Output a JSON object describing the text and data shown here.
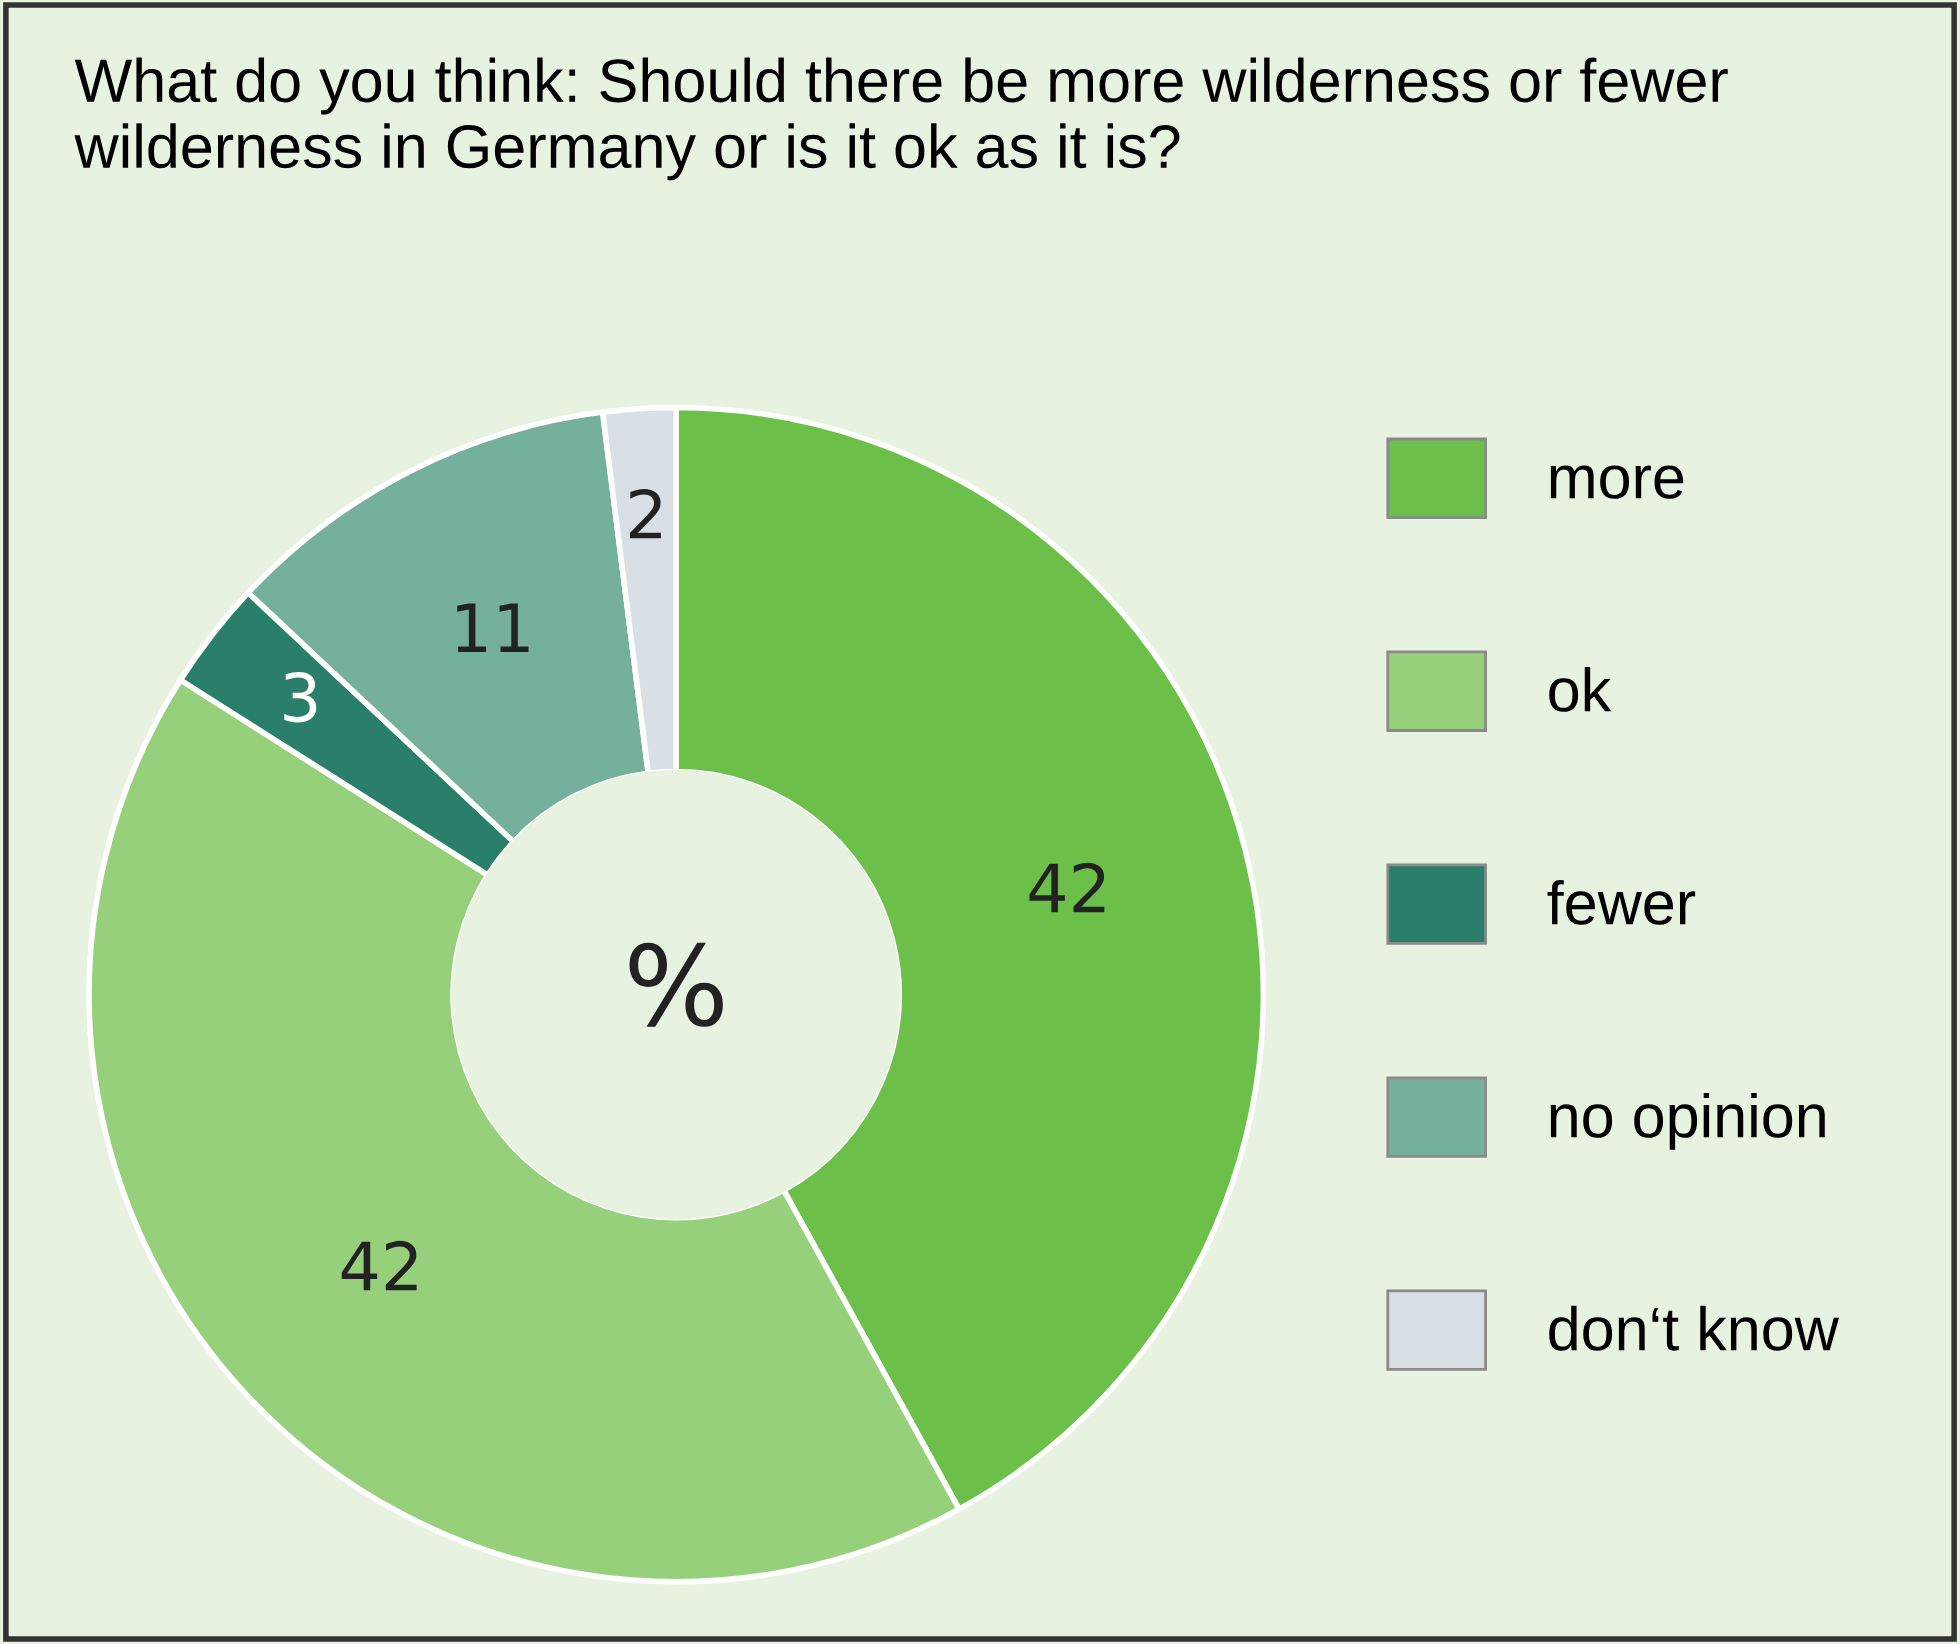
{
  "chart_data": {
    "type": "donut",
    "title": "What do you think: Should there be more wilderness or fewer wilderness in Germany or is it ok as it is?",
    "categories": [
      "more",
      "ok",
      "fewer",
      "no opinion",
      "don‘t know"
    ],
    "values": [
      42,
      42,
      3,
      11,
      2
    ],
    "colors": [
      "#6cc04a",
      "#97d07a",
      "#2a7f6a",
      "#75b09c",
      "#d8e0e6"
    ],
    "data_labels": true,
    "legend": "right",
    "annotations": [
      "%"
    ]
  }
}
